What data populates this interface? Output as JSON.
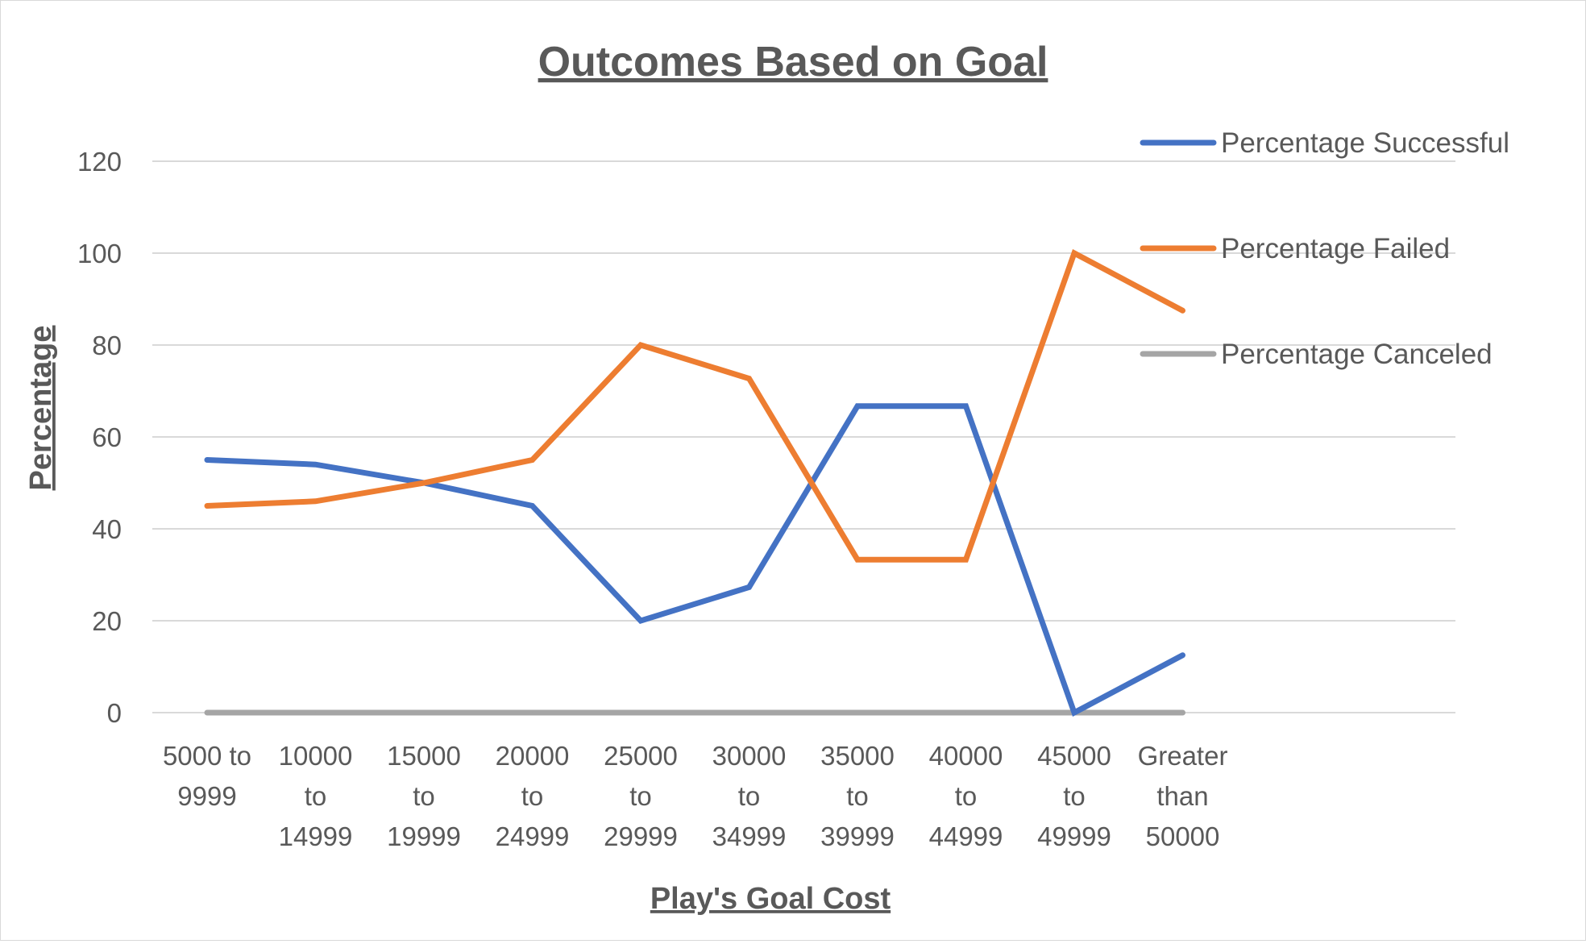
{
  "chart_data": {
    "type": "line",
    "title": "Outcomes Based on Goal",
    "xlabel": "Play's Goal Cost",
    "ylabel": "Percentage",
    "ylim": [
      0,
      120
    ],
    "yticks": [
      "0",
      "20",
      "40",
      "60",
      "80",
      "100",
      "120"
    ],
    "grid": true,
    "legend_position": "right",
    "categories": [
      [
        "5000 to",
        "9999"
      ],
      [
        "10000",
        "to",
        "14999"
      ],
      [
        "15000",
        "to",
        "19999"
      ],
      [
        "20000",
        "to",
        "24999"
      ],
      [
        "25000",
        "to",
        "29999"
      ],
      [
        "30000",
        "to",
        "34999"
      ],
      [
        "35000",
        "to",
        "39999"
      ],
      [
        "40000",
        "to",
        "44999"
      ],
      [
        "45000",
        "to",
        "49999"
      ],
      [
        "Greater",
        "than",
        "50000"
      ]
    ],
    "series": [
      {
        "name": "Percentage Successful",
        "color": "#4472C4",
        "values": [
          55,
          54,
          50,
          45,
          20,
          27.3,
          66.7,
          66.7,
          0,
          12.5
        ]
      },
      {
        "name": "Percentage Failed",
        "color": "#ED7D31",
        "values": [
          45,
          46,
          50,
          55,
          80,
          72.7,
          33.3,
          33.3,
          100,
          87.5
        ]
      },
      {
        "name": "Percentage Canceled",
        "color": "#A5A5A5",
        "values": [
          0,
          0,
          0,
          0,
          0,
          0,
          0,
          0,
          0,
          0
        ]
      }
    ]
  }
}
